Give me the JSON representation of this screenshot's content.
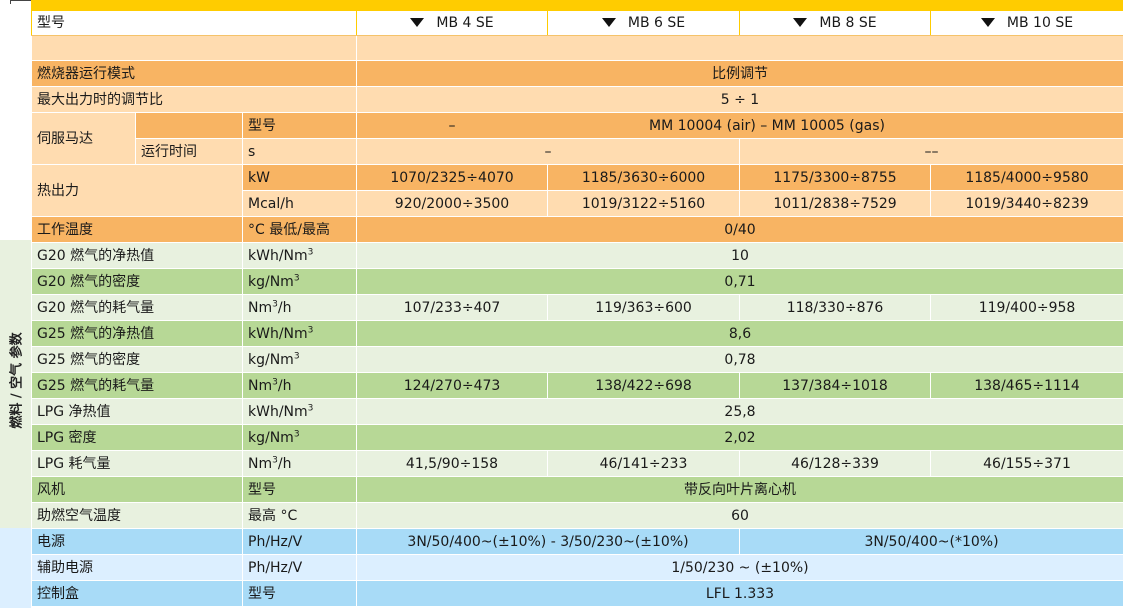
{
  "header": {
    "label": "型号",
    "models": [
      "MB 4 SE",
      "MB 6 SE",
      "MB 8 SE",
      "MB 10 SE"
    ]
  },
  "section_fuel_label": "燃料 / 空气 参数",
  "rows": {
    "mode": {
      "label": "燃烧器运行模式",
      "value": "比例调节"
    },
    "ratio": {
      "label": "最大出力时的调节比",
      "value": "5 ÷ 1"
    },
    "servo": {
      "label": "伺服马达",
      "type_unit": "型号",
      "type_value_a": "–",
      "type_value_b": "MM 10004 (air) – MM 10005 (gas)",
      "time_label": "运行时间",
      "time_unit": "s",
      "time_a": "–",
      "time_b": "––"
    },
    "heat": {
      "label": "热出力",
      "unit_kw": "kW",
      "kw": [
        "1070/2325÷4070",
        "1185/3630÷6000",
        "1175/3300÷8755",
        "1185/4000÷9580"
      ],
      "unit_mcal": "Mcal/h",
      "mcal": [
        "920/2000÷3500",
        "1019/3122÷5160",
        "1011/2838÷7529",
        "1019/3440÷8239"
      ]
    },
    "temp": {
      "label": "工作温度",
      "unit": "°C 最低/最高",
      "value": "0/40"
    },
    "g20_ncv": {
      "label": "G20 燃气的净热值",
      "unit": "kWh/Nm",
      "value": "10"
    },
    "g20_den": {
      "label": "G20 燃气的密度",
      "unit": "kg/Nm",
      "value": "0,71"
    },
    "g20_cons": {
      "label": "G20 燃气的耗气量",
      "unit_a": "Nm",
      "unit_b": "/h",
      "values": [
        "107/233÷407",
        "119/363÷600",
        "118/330÷876",
        "119/400÷958"
      ]
    },
    "g25_ncv": {
      "label": "G25 燃气的净热值",
      "unit": "kWh/Nm",
      "value": "8,6"
    },
    "g25_den": {
      "label": "G25 燃气的密度",
      "unit": "kg/Nm",
      "value": "0,78"
    },
    "g25_cons": {
      "label": "G25 燃气的耗气量",
      "unit_a": "Nm",
      "unit_b": "/h",
      "values": [
        "124/270÷473",
        "138/422÷698",
        "137/384÷1018",
        "138/465÷1114"
      ]
    },
    "lpg_ncv": {
      "label": "LPG 净热值",
      "unit": "kWh/Nm",
      "value": "25,8"
    },
    "lpg_den": {
      "label": "LPG 密度",
      "unit": "kg/Nm",
      "value": "2,02"
    },
    "lpg_cons": {
      "label": "LPG 耗气量",
      "unit_a": "Nm",
      "unit_b": "/h",
      "values": [
        "41,5/90÷158",
        "46/141÷233",
        "46/128÷339",
        "46/155÷371"
      ]
    },
    "fan": {
      "label": "风机",
      "unit": "型号",
      "value": "带反向叶片离心机"
    },
    "air_temp": {
      "label": "助燃空气温度",
      "unit": "最高 °C",
      "value": "60"
    },
    "power": {
      "label": "电源",
      "unit": "Ph/Hz/V",
      "value_a": "3N/50/400~(±10%)  -  3/50/230~(±10%)",
      "value_b": "3N/50/400~(*10%)"
    },
    "aux_power": {
      "label": "辅助电源",
      "unit": "Ph/Hz/V",
      "value": "1/50/230 ~ (±10%)"
    },
    "control": {
      "label": "控制盒",
      "unit": "型号",
      "value": "LFL 1.333"
    }
  },
  "superscript": "3"
}
